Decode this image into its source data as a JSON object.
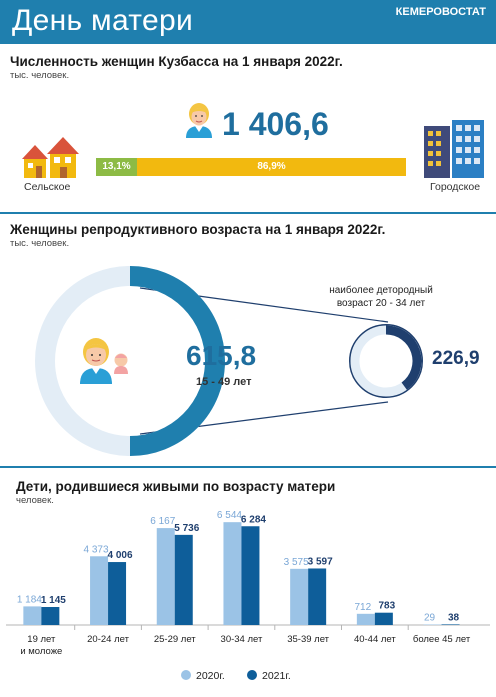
{
  "header": {
    "title": "День матери",
    "org": "КЕМЕРОВОСТАТ"
  },
  "colors": {
    "accent": "#1f7fae",
    "rural": "#8dbb45",
    "urban": "#f2b90f",
    "series_2020": "#9bc3e6",
    "series_2021": "#0e5e9a",
    "dark_blue": "#1f6e9e"
  },
  "population": {
    "title": "Численность женщин Кузбасса на 1 января 2022г.",
    "unit": "тыс. человек.",
    "total": "1 406,6",
    "rural_share_label": "13,1%",
    "urban_share_label": "86,9%",
    "rural_share": 13.1,
    "urban_share": 86.9,
    "rural_label": "Сельское",
    "urban_label": "Городское",
    "icons": [
      "woman-icon",
      "village-houses-icon",
      "city-buildings-icon"
    ]
  },
  "reproductive": {
    "title": "Женщины репродуктивного возраста на 1 января 2022г.",
    "unit": "тыс. человек.",
    "value": "615,8",
    "age_range": "15 - 49 лет",
    "peak_label_line1": "наиболее детородный",
    "peak_label_line2": "возраст 20 - 34 лет",
    "peak_value": "226,9",
    "icons": [
      "mother-with-baby-icon",
      "donut-ring-icon"
    ]
  },
  "births": {
    "title": "Дети, родившиеся живыми по возрасту матери",
    "unit": "человек."
  },
  "chart_data": {
    "type": "bar",
    "categories": [
      "19 лет\nи моложе",
      "20-24 лет",
      "25-29 лет",
      "30-34 лет",
      "35-39 лет",
      "40-44 лет",
      "более 45 лет"
    ],
    "series": [
      {
        "name": "2020г.",
        "values": [
          1184,
          4373,
          6167,
          6544,
          3575,
          712,
          29
        ],
        "labels": [
          "1 184",
          "4 373",
          "6 167",
          "6 544",
          "3 575",
          "712",
          "29"
        ]
      },
      {
        "name": "2021г.",
        "values": [
          1145,
          4006,
          5736,
          6284,
          3597,
          783,
          38
        ],
        "labels": [
          "1 145",
          "4 006",
          "5 736",
          "6 284",
          "3 597",
          "783",
          "38"
        ]
      }
    ],
    "title": "Дети, родившиеся живыми по возрасту матери",
    "ylabel": "человек.",
    "ylim": [
      0,
      7000
    ],
    "grid": false,
    "legend": "bottom-center"
  }
}
